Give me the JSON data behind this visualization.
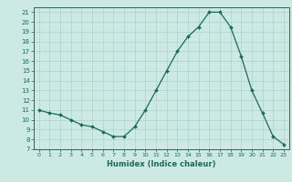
{
  "x": [
    0,
    1,
    2,
    3,
    4,
    5,
    6,
    7,
    8,
    9,
    10,
    11,
    12,
    13,
    14,
    15,
    16,
    17,
    18,
    19,
    20,
    21,
    22,
    23
  ],
  "y": [
    11.0,
    10.7,
    10.5,
    10.0,
    9.5,
    9.3,
    8.8,
    8.3,
    8.3,
    9.3,
    11.0,
    13.0,
    15.0,
    17.0,
    18.5,
    19.5,
    21.0,
    21.0,
    19.5,
    16.5,
    13.0,
    10.7,
    8.3,
    7.5
  ],
  "xlabel": "Humidex (Indice chaleur)",
  "line_color": "#1a6b5a",
  "marker_color": "#1a6b5a",
  "bg_color": "#cce9e4",
  "grid_color": "#aad4cc",
  "xlim": [
    -0.5,
    23.5
  ],
  "ylim": [
    7,
    21.5
  ],
  "yticks": [
    7,
    8,
    9,
    10,
    11,
    12,
    13,
    14,
    15,
    16,
    17,
    18,
    19,
    20,
    21
  ],
  "xticks": [
    0,
    1,
    2,
    3,
    4,
    5,
    6,
    7,
    8,
    9,
    10,
    11,
    12,
    13,
    14,
    15,
    16,
    17,
    18,
    19,
    20,
    21,
    22,
    23
  ]
}
